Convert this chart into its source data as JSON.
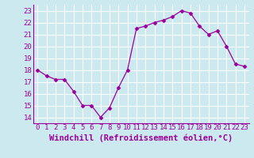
{
  "x": [
    0,
    1,
    2,
    3,
    4,
    5,
    6,
    7,
    8,
    9,
    10,
    11,
    12,
    13,
    14,
    15,
    16,
    17,
    18,
    19,
    20,
    21,
    22,
    23
  ],
  "y": [
    18.0,
    17.5,
    17.2,
    17.2,
    16.2,
    15.0,
    15.0,
    14.0,
    14.8,
    16.5,
    18.0,
    21.5,
    21.7,
    22.0,
    22.2,
    22.5,
    23.0,
    22.8,
    21.7,
    21.0,
    21.3,
    20.0,
    18.5,
    18.3
  ],
  "line_color": "#990099",
  "marker": "D",
  "marker_size": 2.5,
  "bg_color": "#cce9f0",
  "grid_color": "#ffffff",
  "xlabel": "Windchill (Refroidissement éolien,°C)",
  "xlabel_color": "#990099",
  "tick_color": "#990099",
  "axis_color": "#990099",
  "ylim": [
    13.5,
    23.5
  ],
  "xlim": [
    -0.5,
    23.5
  ],
  "yticks": [
    14,
    15,
    16,
    17,
    18,
    19,
    20,
    21,
    22,
    23
  ],
  "xticks": [
    0,
    1,
    2,
    3,
    4,
    5,
    6,
    7,
    8,
    9,
    10,
    11,
    12,
    13,
    14,
    15,
    16,
    17,
    18,
    19,
    20,
    21,
    22,
    23
  ],
  "tick_fontsize": 6.5,
  "xlabel_fontsize": 7.5
}
